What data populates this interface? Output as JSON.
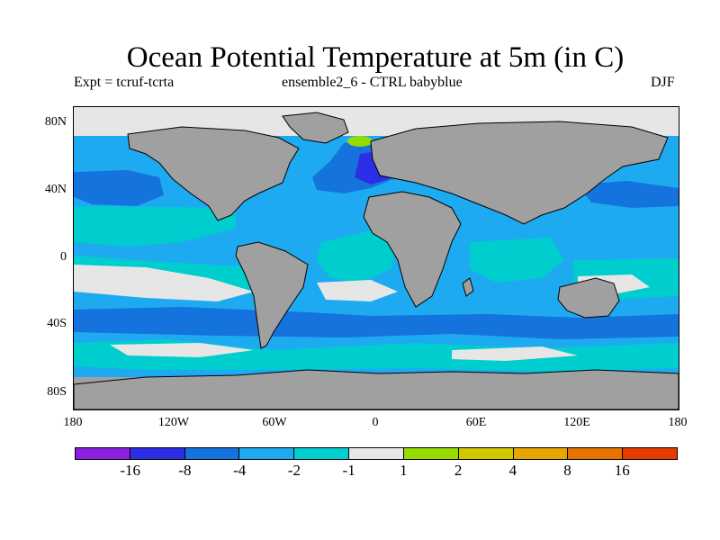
{
  "title": "Ocean Potential Temperature at 5m (in C)",
  "subtitle_left": "Expt = tcruf-tcrta",
  "subtitle_center": "ensemble2_6 - CTRL babyblue",
  "subtitle_right": "DJF",
  "y_axis_labels": [
    "80N",
    "40N",
    "0",
    "40S",
    "80S"
  ],
  "x_axis_labels": [
    "180",
    "120W",
    "60W",
    "0",
    "60E",
    "120E",
    "180"
  ],
  "colorbar": {
    "colors": [
      "#8c1ee0",
      "#2d2de6",
      "#1473dc",
      "#1eaaf0",
      "#00cdcd",
      "#e6e6e6",
      "#96dc00",
      "#d2c800",
      "#e6a500",
      "#e67300",
      "#e63c00"
    ],
    "labels": [
      "-16",
      "-8",
      "-4",
      "-2",
      "-1",
      "1",
      "2",
      "4",
      "8",
      "16"
    ]
  },
  "map_colors": {
    "land": "#a0a0a0",
    "coast": "#000000"
  }
}
